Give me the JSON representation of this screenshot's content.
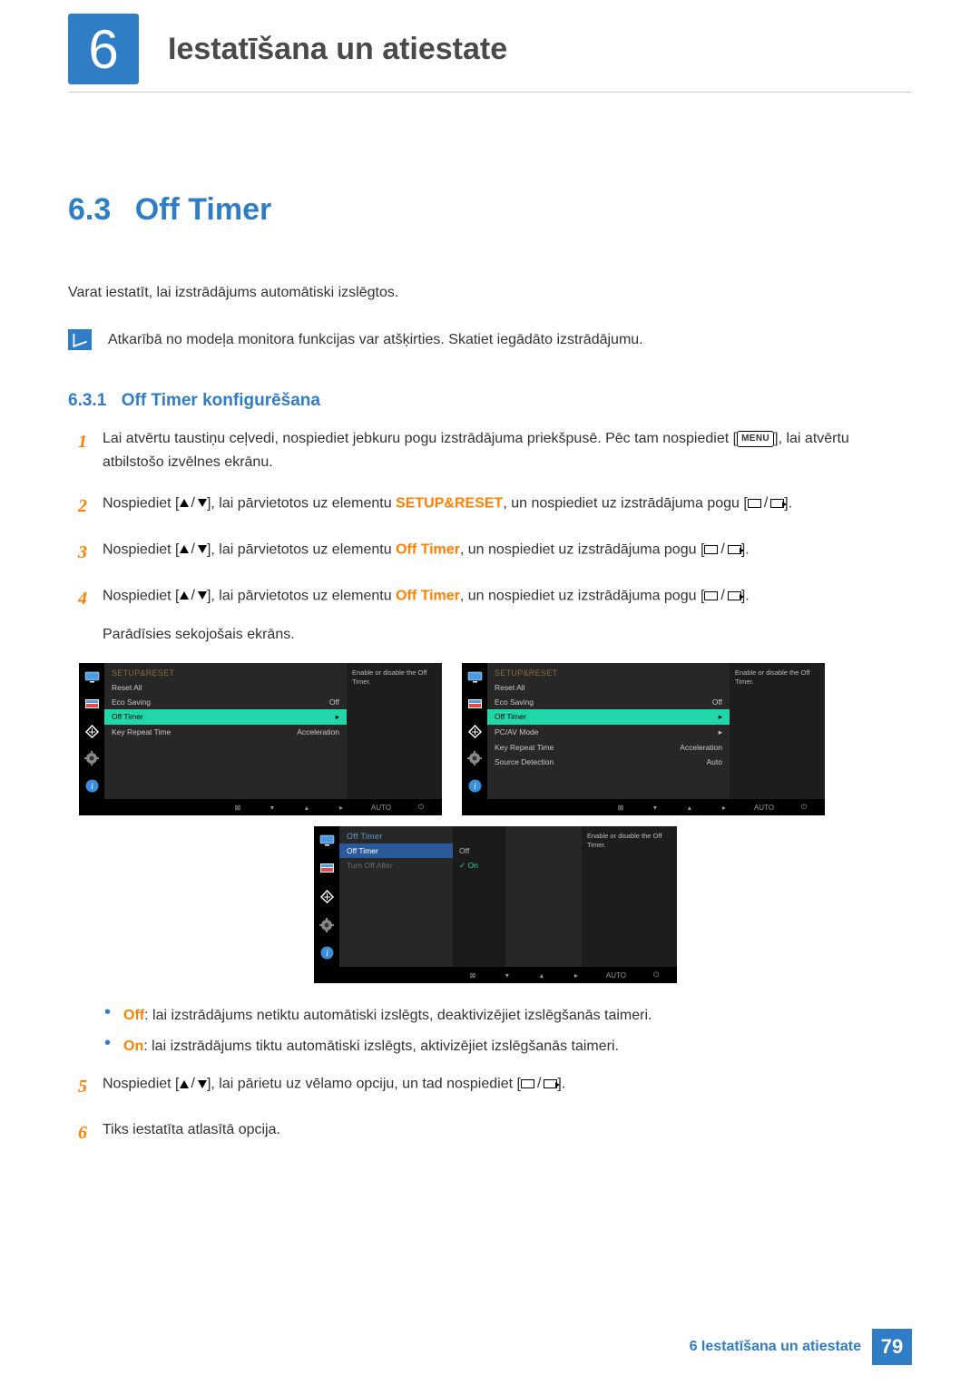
{
  "chapter": {
    "number": "6",
    "title": "Iestatīšana un atiestate"
  },
  "section": {
    "number": "6.3",
    "title": "Off Timer"
  },
  "intro": "Varat iestatīt, lai izstrādājums automātiski izslēgtos.",
  "note": "Atkarībā no modeļa monitora funkcijas var atšķirties. Skatiet iegādāto izstrādājumu.",
  "subsection": {
    "number": "6.3.1",
    "title": "Off Timer konfigurēšana"
  },
  "menu_label": "MENU",
  "steps": {
    "s1a": "Lai atvērtu taustiņu ceļvedi, nospiediet jebkuru pogu izstrādājuma priekšpusē. Pēc tam nospiediet [",
    "s1b": "], lai atvērtu atbilstošo izvēlnes ekrānu.",
    "s2a": "Nospiediet [",
    "s2b": "], lai pārvietotos uz elementu ",
    "s2hl": "SETUP&RESET",
    "s2c": ", un nospiediet uz izstrādājuma pogu [",
    "s2d": "].",
    "s3a": "Nospiediet [",
    "s3b": "], lai pārvietotos uz elementu ",
    "s3hl": "Off Timer",
    "s3c": ", un nospiediet uz izstrādājuma pogu [",
    "s3d": "].",
    "s4a": "Nospiediet [",
    "s4b": "], lai pārvietotos uz elementu ",
    "s4hl": "Off Timer",
    "s4c": ", un nospiediet uz izstrādājuma pogu [",
    "s4d": "].",
    "s4e": "Parādīsies sekojošais ekrāns.",
    "s5a": "Nospiediet [",
    "s5b": "], lai pārietu uz vēlamo opciju, un tad nospiediet [",
    "s5c": "].",
    "s6": "Tiks iestatīta atlasītā opcija."
  },
  "bullets": {
    "off_label": "Off",
    "off_text": ": lai izstrādājums netiktu automātiski izslēgts, deaktivizējiet izslēgšanās taimeri.",
    "on_label": "On",
    "on_text": ": lai izstrādājums tiktu automātiski izslēgts, aktivizējiet izslēgšanās taimeri."
  },
  "osd": {
    "help": "Enable or disable the Off Timer.",
    "auto_label": "AUTO",
    "menuA": {
      "title": "SETUP&RESET",
      "items": [
        {
          "l": "Reset All",
          "r": ""
        },
        {
          "l": "Eco Saving",
          "r": "Off"
        },
        {
          "l": "Off Timer",
          "r": "▸",
          "hi": true
        },
        {
          "l": "Key Repeat Time",
          "r": "Acceleration"
        }
      ]
    },
    "menuB": {
      "title": "SETUP&RESET",
      "items": [
        {
          "l": "Reset All",
          "r": ""
        },
        {
          "l": "Eco Saving",
          "r": "Off"
        },
        {
          "l": "Off Timer",
          "r": "▸",
          "hi": true
        },
        {
          "l": "PC/AV Mode",
          "r": "▸"
        },
        {
          "l": "Key Repeat Time",
          "r": "Acceleration"
        },
        {
          "l": "Source Detection",
          "r": "Auto"
        }
      ]
    },
    "menuC": {
      "title": "Off Timer",
      "col1": [
        {
          "l": "Off Timer",
          "r": "",
          "bluehi": true
        },
        {
          "l": "Turn Off After",
          "r": "",
          "dim": true
        }
      ],
      "col2": {
        "plain": "Off",
        "sel": "On"
      }
    }
  },
  "footer": {
    "label": "6 Iestatīšana un atiestate",
    "page": "79"
  }
}
